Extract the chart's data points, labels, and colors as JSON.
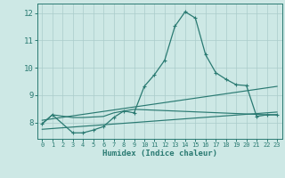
{
  "xlabel": "Humidex (Indice chaleur)",
  "xlim": [
    -0.5,
    23.5
  ],
  "ylim": [
    7.4,
    12.35
  ],
  "yticks": [
    8,
    9,
    10,
    11,
    12
  ],
  "xticks": [
    0,
    1,
    2,
    3,
    4,
    5,
    6,
    7,
    8,
    9,
    10,
    11,
    12,
    13,
    14,
    15,
    16,
    17,
    18,
    19,
    20,
    21,
    22,
    23
  ],
  "bg_color": "#cde8e5",
  "grid_color": "#aaccca",
  "line_color": "#2a7a72",
  "series": [
    {
      "x": [
        0,
        1,
        3,
        4,
        5,
        6,
        7,
        8,
        9,
        10,
        11,
        12,
        13,
        14,
        15,
        16,
        17,
        18,
        19,
        20,
        21,
        22,
        23
      ],
      "y": [
        7.95,
        8.28,
        7.62,
        7.62,
        7.72,
        7.85,
        8.18,
        8.42,
        8.35,
        9.32,
        9.75,
        10.28,
        11.52,
        12.05,
        11.82,
        10.48,
        9.82,
        9.58,
        9.38,
        9.35,
        8.22,
        8.28,
        8.28
      ],
      "marker": "+",
      "markersize": 3.5,
      "linewidth": 0.9,
      "zorder": 4
    },
    {
      "x": [
        0,
        1,
        3,
        4,
        5,
        6,
        7,
        8,
        9,
        22,
        23
      ],
      "y": [
        7.95,
        8.28,
        8.18,
        8.18,
        8.2,
        8.22,
        8.35,
        8.42,
        8.48,
        8.28,
        8.28
      ],
      "marker": null,
      "markersize": 0,
      "linewidth": 0.85,
      "zorder": 3
    },
    {
      "x": [
        0,
        23
      ],
      "y": [
        8.08,
        9.32
      ],
      "marker": null,
      "markersize": 0,
      "linewidth": 0.85,
      "zorder": 3
    },
    {
      "x": [
        0,
        23
      ],
      "y": [
        7.75,
        8.38
      ],
      "marker": null,
      "markersize": 0,
      "linewidth": 0.85,
      "zorder": 3
    }
  ]
}
